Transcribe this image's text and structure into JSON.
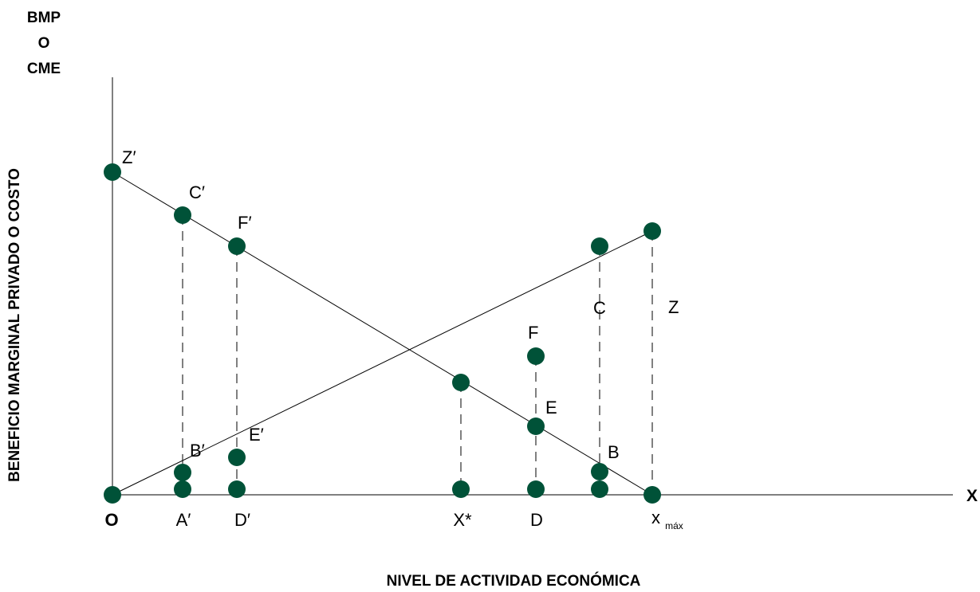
{
  "colors": {
    "point": "#005238",
    "line": "#000000"
  },
  "y_axis": {
    "title_lines": [
      "BMP",
      "O",
      "CME"
    ],
    "side_label": "BENEFICIO MARGINAL PRIVADO O COSTO"
  },
  "x_axis": {
    "end_label": "X",
    "title": "NIVEL DE ACTIVIDAD ECONÓMICA",
    "origin_label": "O",
    "tick_labels": {
      "a_prime": "A′",
      "d_prime": "D′",
      "x_star": "X*",
      "d": "D",
      "x_max_main": "x",
      "x_max_sub": "máx"
    }
  },
  "point_labels": {
    "z_prime": "Z′",
    "c_prime": "C′",
    "f_prime": "F′",
    "b_prime": "B′",
    "e_prime": "E′",
    "f": "F",
    "c": "C",
    "z": "Z",
    "e": "E",
    "b": "B"
  }
}
